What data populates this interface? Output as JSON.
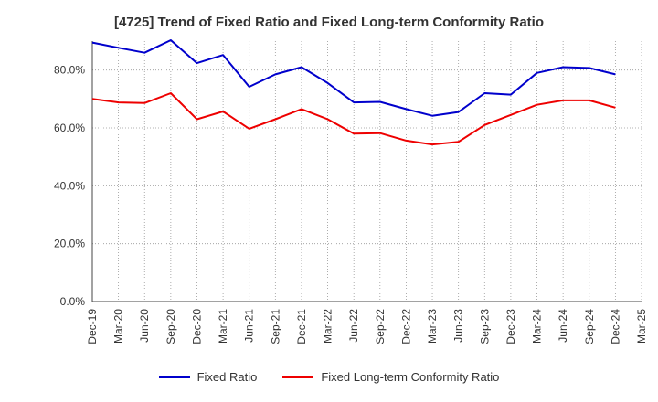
{
  "chart_data": {
    "type": "line",
    "title": "[4725]  Trend of Fixed Ratio and Fixed Long-term Conformity Ratio",
    "xlabel": "",
    "ylabel": "",
    "categories": [
      "Dec-19",
      "Mar-20",
      "Jun-20",
      "Sep-20",
      "Dec-20",
      "Mar-21",
      "Jun-21",
      "Sep-21",
      "Dec-21",
      "Mar-22",
      "Jun-22",
      "Sep-22",
      "Dec-22",
      "Mar-23",
      "Jun-23",
      "Sep-23",
      "Dec-23",
      "Mar-24",
      "Jun-24",
      "Sep-24",
      "Dec-24",
      "Mar-25"
    ],
    "ylim": [
      0,
      90
    ],
    "yticks": [
      0,
      20,
      40,
      60,
      80
    ],
    "ytick_labels": [
      "0.0%",
      "20.0%",
      "40.0%",
      "60.0%",
      "80.0%"
    ],
    "grid": true,
    "legend_position": "bottom",
    "series": [
      {
        "name": "Fixed Ratio",
        "color": "#0000cc",
        "values": [
          89.5,
          87.7,
          86.0,
          90.3,
          82.4,
          85.2,
          74.2,
          78.5,
          81.0,
          75.5,
          68.8,
          69.0,
          66.5,
          64.2,
          65.5,
          72.0,
          71.5,
          79.0,
          81.0,
          80.7,
          78.5,
          null
        ]
      },
      {
        "name": "Fixed Long-term Conformity Ratio",
        "color": "#ee0000",
        "values": [
          70.0,
          68.8,
          68.6,
          72.0,
          63.0,
          65.7,
          59.7,
          63.0,
          66.5,
          63.0,
          58.0,
          58.2,
          55.6,
          54.3,
          55.2,
          61.0,
          64.5,
          68.0,
          69.5,
          69.5,
          67.0,
          null
        ]
      }
    ]
  }
}
